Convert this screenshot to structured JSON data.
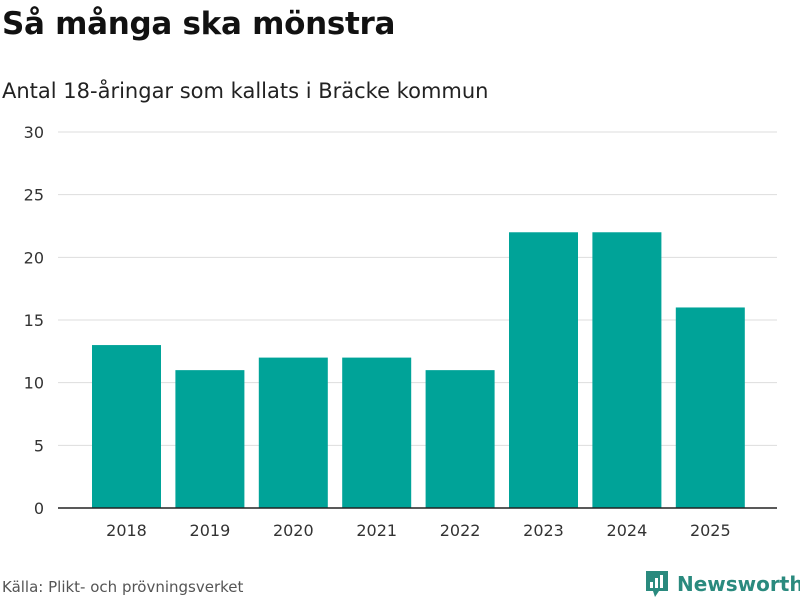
{
  "header": {
    "title": "Så många ska mönstra",
    "subtitle": "Antal 18-åringar som kallats i Bräcke kommun"
  },
  "chart_data": {
    "type": "bar",
    "title": "Så många ska mönstra",
    "subtitle": "Antal 18-åringar som kallats i Bräcke kommun",
    "categories": [
      "2018",
      "2019",
      "2020",
      "2021",
      "2022",
      "2023",
      "2024",
      "2025"
    ],
    "values": [
      13,
      11,
      12,
      12,
      11,
      22,
      22,
      16
    ],
    "xlabel": "",
    "ylabel": "",
    "ylim": [
      0,
      30
    ],
    "yticks": [
      0,
      5,
      10,
      15,
      20,
      25,
      30
    ],
    "grid": true,
    "bar_color": "#00a398"
  },
  "footer": {
    "source": "Källa: Plikt- och prövningsverket",
    "brand": "Newsworthy",
    "brand_color": "#2a8a7e"
  }
}
